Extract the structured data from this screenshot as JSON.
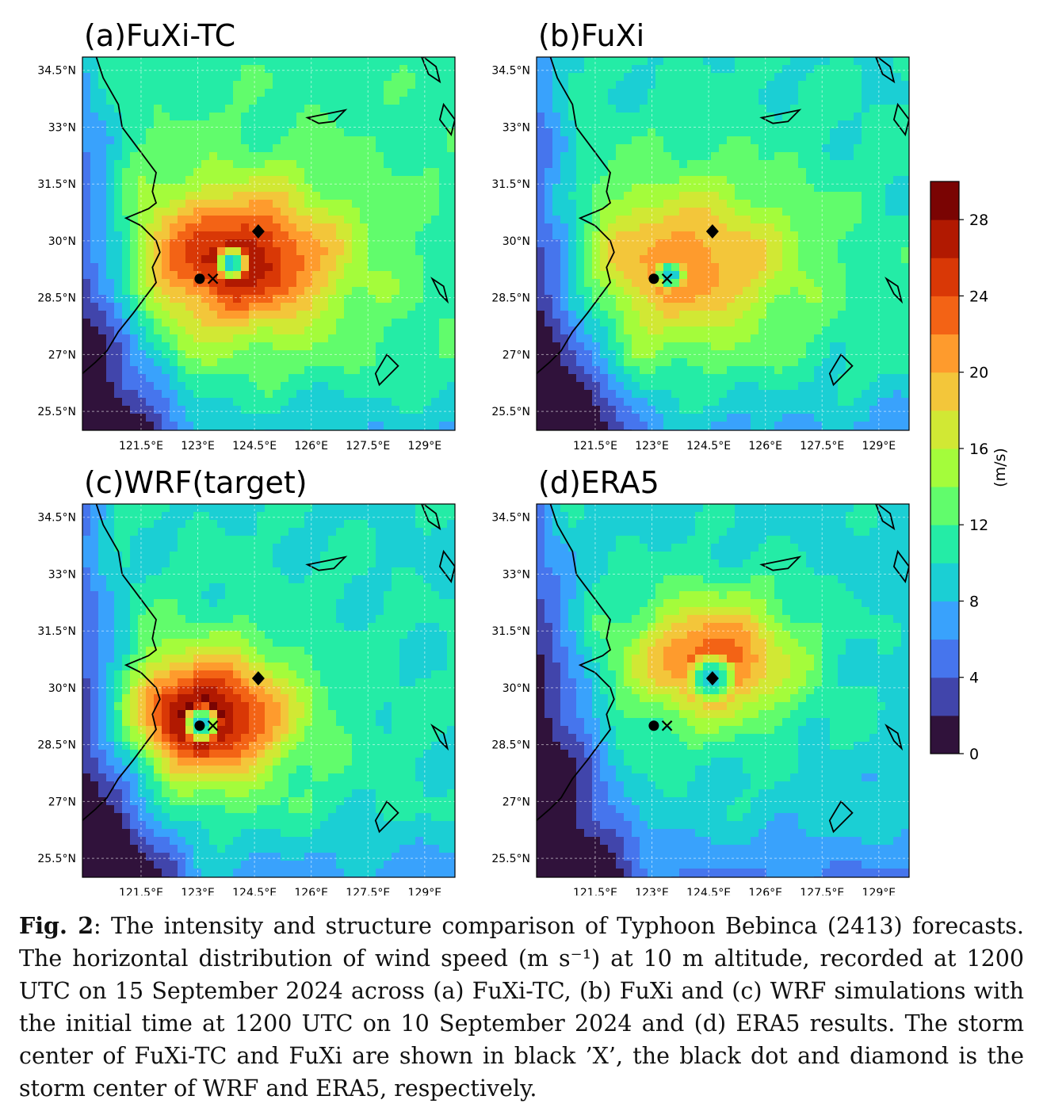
{
  "figure": {
    "panels": [
      {
        "title": "(a)FuXi-TC",
        "centers": {
          "fuxi_x": [
            123.4,
            29.0
          ],
          "wrf_dot": [
            123.05,
            29.0
          ],
          "era5_diamond": [
            124.6,
            30.25
          ]
        },
        "field": {
          "core": [
            123.9,
            29.4
          ],
          "peak": 26,
          "ring_radius": 0.35,
          "calm": 0.5,
          "spread_x": 2.4,
          "spread_y": 1.7,
          "bg": 12,
          "skew": [
            0.2,
            0.1
          ],
          "hot_lobe": [
            123.2,
            29.6,
            27
          ]
        }
      },
      {
        "title": "(b)FuXi",
        "centers": {
          "fuxi_x": [
            123.4,
            29.0
          ],
          "wrf_dot": [
            123.05,
            29.0
          ],
          "era5_diamond": [
            124.6,
            30.25
          ]
        },
        "field": {
          "core": [
            123.5,
            29.1
          ],
          "peak": 20,
          "ring_radius": 0.45,
          "calm": 0.45,
          "spread_x": 2.7,
          "spread_y": 1.9,
          "bg": 11,
          "skew": [
            0.4,
            0.3
          ],
          "hot_lobe": [
            124.0,
            30.0,
            21
          ]
        }
      },
      {
        "title": "(c)WRF(target)",
        "centers": {
          "fuxi_x": [
            123.4,
            29.0
          ],
          "wrf_dot": [
            123.05,
            29.0
          ],
          "era5_diamond": [
            124.6,
            30.25
          ]
        },
        "field": {
          "core": [
            123.1,
            29.05
          ],
          "peak": 28,
          "ring_radius": 0.35,
          "calm": 0.55,
          "spread_x": 2.0,
          "spread_y": 1.5,
          "bg": 11,
          "skew": [
            0.1,
            0.2
          ],
          "hot_lobe": [
            123.5,
            29.6,
            28
          ]
        }
      },
      {
        "title": "(d)ERA5",
        "centers": {
          "fuxi_x": [
            123.4,
            29.0
          ],
          "wrf_dot": [
            123.05,
            29.0
          ],
          "era5_diamond": [
            124.6,
            30.25
          ]
        },
        "field": {
          "core": [
            124.6,
            30.25
          ],
          "peak": 22,
          "ring_radius": 0.45,
          "calm": 0.7,
          "spread_x": 2.0,
          "spread_y": 1.5,
          "bg": 10,
          "skew": [
            0.0,
            0.5
          ],
          "hot_lobe": [
            124.9,
            30.9,
            23
          ]
        }
      }
    ],
    "lon_ticks": [
      "121.5°E",
      "123°E",
      "124.5°E",
      "126°E",
      "127.5°E",
      "129°E"
    ],
    "lat_ticks": [
      "34.5°N",
      "33°N",
      "31.5°N",
      "30°N",
      "28.5°N",
      "27°N",
      "25.5°N"
    ],
    "colorbar": {
      "label": "(m/s)",
      "tick_labels": [
        "0",
        "4",
        "8",
        "12",
        "16",
        "20",
        "24",
        "28"
      ],
      "levels": [
        0,
        2,
        4,
        6,
        8,
        10,
        12,
        14,
        16,
        18,
        20,
        22,
        24,
        26,
        28,
        30
      ],
      "colors": [
        "#30123b",
        "#4145ab",
        "#4675ed",
        "#39a2fc",
        "#1bcfd4",
        "#24eca6",
        "#61fc6c",
        "#a4fc3b",
        "#d1e834",
        "#f3c63a",
        "#fe9b2d",
        "#f36315",
        "#d93806",
        "#b11901",
        "#7a0403"
      ]
    }
  },
  "caption": {
    "label": "Fig. 2",
    "text": ": The intensity and structure comparison of Typhoon Bebinca (2413) forecasts. The horizontal distribution of wind speed (m s⁻¹) at 10 m altitude, recorded at 1200 UTC on 15 September 2024 across (a) FuXi-TC, (b) FuXi and (c) WRF simulations with the initial time at 1200 UTC on 10 September 2024 and (d) ERA5 results. The storm center of FuXi-TC and FuXi are shown in black ’X’, the black dot and diamond is the storm center of WRF and ERA5, respectively."
  }
}
